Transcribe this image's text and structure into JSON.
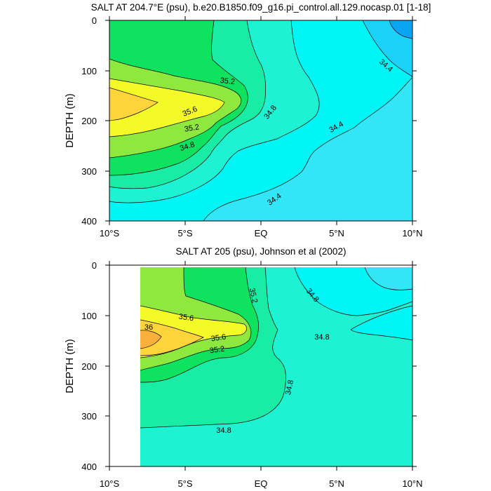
{
  "chart_data": [
    {
      "type": "contour",
      "title": "SALT AT 204.7°E (psu), b.e20.B1850.f09_g16.pi_control.all.129.nocasp.01 [1-18]",
      "ylabel": "DEPTH (m)",
      "xlabel": "",
      "x_tick_labels": [
        "10°S",
        "5°S",
        "EQ",
        "5°N",
        "10°N"
      ],
      "x_tick_values": [
        -10,
        -5,
        0,
        5,
        10
      ],
      "y_tick_values": [
        0,
        100,
        200,
        300,
        400
      ],
      "xlim": [
        -10,
        10
      ],
      "ylim": [
        400,
        0
      ],
      "contour_interval": 0.2,
      "contour_labels": [
        "35.2",
        "35.6",
        "35.2",
        "34.8",
        "34.8",
        "34.4",
        "34.4",
        "34.4"
      ],
      "fill_levels": [
        {
          "level": "<34.2",
          "color": "#0aa4f5"
        },
        {
          "level": "34.2-34.4",
          "color": "#1ad2f7"
        },
        {
          "level": "34.4-34.6",
          "color": "#33e6f7"
        },
        {
          "level": "34.6-34.8",
          "color": "#00f5f5"
        },
        {
          "level": "34.8-35.0",
          "color": "#1df2d2"
        },
        {
          "level": "35.0-35.2",
          "color": "#19eca4"
        },
        {
          "level": "35.2-35.4",
          "color": "#0ee25e"
        },
        {
          "level": "35.4-35.6",
          "color": "#8fe83e"
        },
        {
          "level": "35.6-35.8",
          "color": "#f4fa28"
        },
        {
          "level": ">35.8",
          "color": "#fdd53a"
        }
      ]
    },
    {
      "type": "contour",
      "title": "SALT AT 205 (psu), Johnson et al (2002)",
      "ylabel": "DEPTH (m)",
      "xlabel": "",
      "x_tick_labels": [
        "10°S",
        "5°S",
        "EQ",
        "5°N",
        "10°N"
      ],
      "x_tick_values": [
        -10,
        -5,
        0,
        5,
        10
      ],
      "y_tick_values": [
        0,
        100,
        200,
        300,
        400
      ],
      "xlim": [
        -10,
        10
      ],
      "ylim": [
        400,
        0
      ],
      "data_xlim": [
        -8,
        10
      ],
      "data_ylim": [
        10,
        400
      ],
      "contour_interval": 0.2,
      "contour_labels": [
        "35.2",
        "34.8",
        "35.6",
        "36",
        "34.8",
        "35.6",
        "35.2",
        "34.8",
        "34.8"
      ],
      "fill_levels": [
        {
          "level": "34.4-34.6",
          "color": "#33e6f7"
        },
        {
          "level": "34.6-34.8",
          "color": "#00f5f5"
        },
        {
          "level": "34.8-35.0",
          "color": "#1df2d2"
        },
        {
          "level": "35.0-35.2",
          "color": "#19eca4"
        },
        {
          "level": "35.2-35.4",
          "color": "#0ee25e"
        },
        {
          "level": "35.4-35.6",
          "color": "#8fe83e"
        },
        {
          "level": "35.6-35.8",
          "color": "#f4fa28"
        },
        {
          "level": "35.8-36.0",
          "color": "#fdd53a"
        },
        {
          "level": ">36.0",
          "color": "#f9b13c"
        }
      ]
    }
  ]
}
